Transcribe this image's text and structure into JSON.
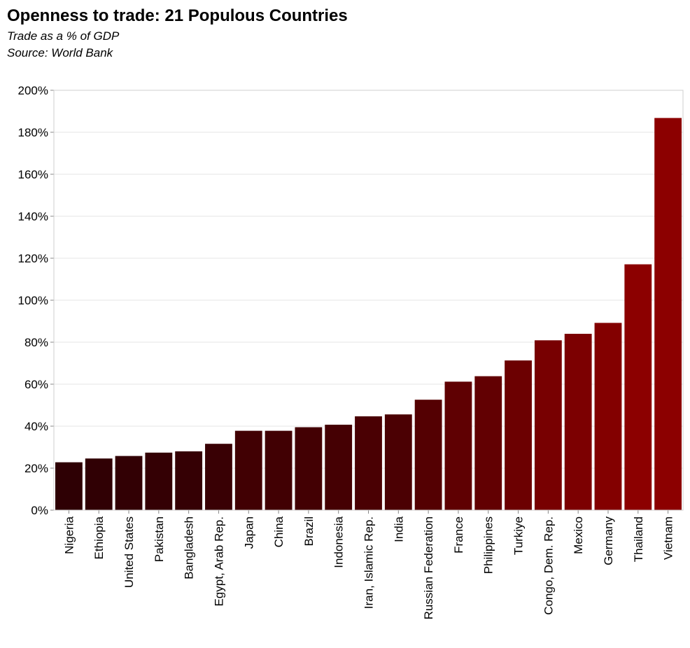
{
  "chart_data": {
    "type": "bar",
    "title": "Openness to trade: 21 Populous Countries",
    "subtitle": [
      "Trade as a % of GDP",
      "Source: World Bank"
    ],
    "xlabel": "",
    "ylabel": "",
    "ylim": [
      0,
      200
    ],
    "y_tick_suffix": "%",
    "y_ticks": [
      0,
      20,
      40,
      60,
      80,
      100,
      120,
      140,
      160,
      180,
      200
    ],
    "grid": true,
    "categories": [
      "Nigeria",
      "Ethiopia",
      "United States",
      "Pakistan",
      "Bangladesh",
      "Egypt, Arab Rep.",
      "Japan",
      "China",
      "Brazil",
      "Indonesia",
      "Iran, Islamic Rep.",
      "India",
      "Russian Federation",
      "France",
      "Philippines",
      "Turkiye",
      "Congo, Dem. Rep.",
      "Mexico",
      "Germany",
      "Thailand",
      "Vietnam"
    ],
    "values": [
      22.8,
      24.6,
      25.8,
      27.4,
      28.0,
      31.6,
      37.8,
      37.8,
      39.5,
      40.7,
      44.7,
      45.6,
      52.6,
      61.2,
      63.8,
      71.3,
      80.9,
      84.0,
      89.2,
      117.1,
      186.8
    ],
    "color_range": [
      "#2e0004",
      "#8c0000"
    ]
  }
}
